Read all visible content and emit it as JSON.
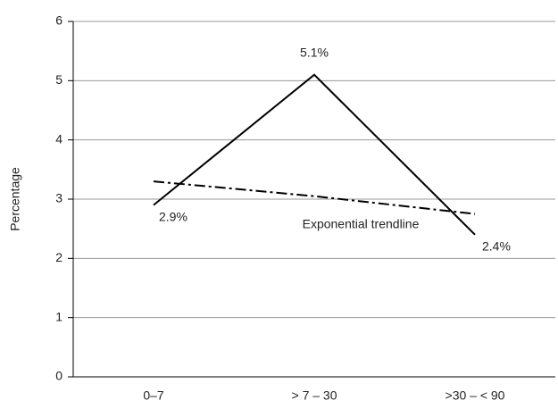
{
  "chart_data": {
    "type": "line",
    "y_label": "Percentage",
    "categories": [
      "0–7",
      "> 7 – 30",
      ">30 – < 90"
    ],
    "series": [
      {
        "color": "#000000",
        "style": "solid",
        "values": [
          2.9,
          5.1,
          2.4
        ],
        "value_labels": [
          "2.9%",
          "5.1%",
          "2.4%"
        ]
      },
      {
        "name": "Exponential trendline",
        "color": "#000000",
        "style": "dash-dot",
        "values": [
          3.3,
          3.05,
          2.75
        ]
      }
    ],
    "ylim": [
      0,
      6
    ],
    "yticks": [
      0,
      1,
      2,
      3,
      4,
      5,
      6
    ],
    "grid": true
  }
}
